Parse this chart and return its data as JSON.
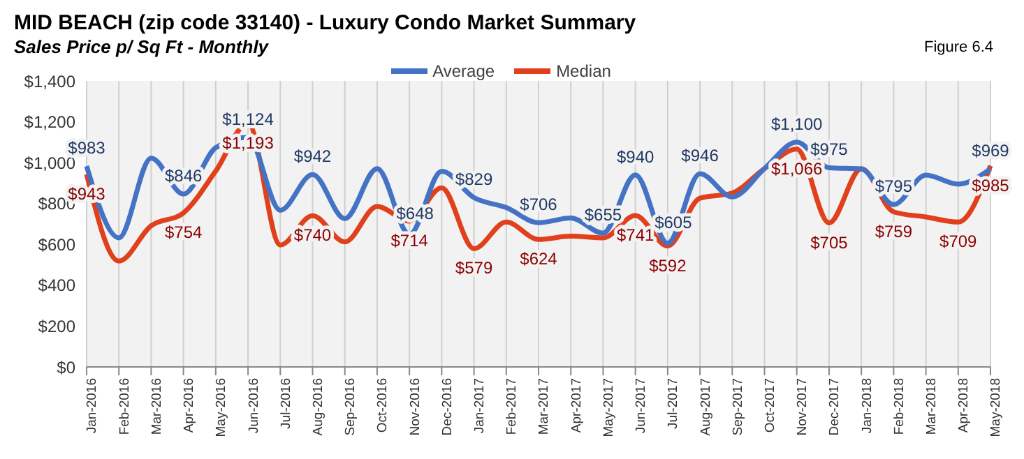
{
  "chart_data": {
    "type": "line",
    "title": "MID BEACH (zip code 33140) - Luxury Condo Market Summary",
    "subtitle": "Sales Price  p/ Sq Ft - Monthly",
    "annotations": [
      "Figure 6.4"
    ],
    "categories": [
      "Jan-2016",
      "Feb-2016",
      "Mar-2016",
      "Apr-2016",
      "May-2016",
      "Jun-2016",
      "Jul-2016",
      "Aug-2016",
      "Sep-2016",
      "Oct-2016",
      "Nov-2016",
      "Dec-2016",
      "Jan-2017",
      "Feb-2017",
      "Mar-2017",
      "Apr-2017",
      "May-2017",
      "Jun-2017",
      "Jul-2017",
      "Aug-2017",
      "Sep-2017",
      "Oct-2017",
      "Nov-2017",
      "Dec-2017",
      "Jan-2018",
      "Feb-2018",
      "Mar-2018",
      "Apr-2018",
      "May-2018"
    ],
    "series": [
      {
        "name": "Average",
        "color": "#4472c4",
        "values": [
          983,
          632,
          1022,
          846,
          1073,
          1124,
          767,
          942,
          726,
          971,
          648,
          958,
          829,
          780,
          706,
          729,
          655,
          940,
          605,
          946,
          832,
          971,
          1100,
          975,
          969,
          795,
          939,
          895,
          969
        ],
        "value_labels": [
          "$983",
          null,
          null,
          "$846",
          null,
          "$1,124",
          null,
          "$942",
          null,
          null,
          "$648",
          null,
          "$829",
          null,
          "$706",
          null,
          "$655",
          "$940",
          "$605",
          "$946",
          null,
          null,
          "$1,100",
          "$975",
          null,
          "$795",
          null,
          null,
          "$969"
        ]
      },
      {
        "name": "Median",
        "color": "#e0401c",
        "values": [
          943,
          518,
          691,
          754,
          959,
          1193,
          597,
          740,
          612,
          785,
          714,
          877,
          579,
          709,
          624,
          640,
          632,
          741,
          592,
          826,
          851,
          971,
          1066,
          705,
          971,
          759,
          734,
          709,
          985
        ],
        "value_labels": [
          "$943",
          null,
          null,
          "$754",
          null,
          "$1,193",
          null,
          "$740",
          null,
          null,
          "$714",
          null,
          "$579",
          null,
          "$624",
          null,
          null,
          "$741",
          "$592",
          null,
          null,
          null,
          "$1,066",
          "$705",
          null,
          "$759",
          null,
          "$709",
          "$985"
        ]
      }
    ],
    "ylim": [
      0,
      1400
    ],
    "yticks": [
      {
        "value": 0,
        "label": "$0"
      },
      {
        "value": 200,
        "label": "$200"
      },
      {
        "value": 400,
        "label": "$400"
      },
      {
        "value": 600,
        "label": "$600"
      },
      {
        "value": 800,
        "label": "$800"
      },
      {
        "value": 1000,
        "label": "$1,000"
      },
      {
        "value": 1200,
        "label": "$1,200"
      },
      {
        "value": 1400,
        "label": "$1,400"
      }
    ],
    "grid": "x",
    "legend": "top",
    "marker": "none",
    "line_style": "solid"
  }
}
